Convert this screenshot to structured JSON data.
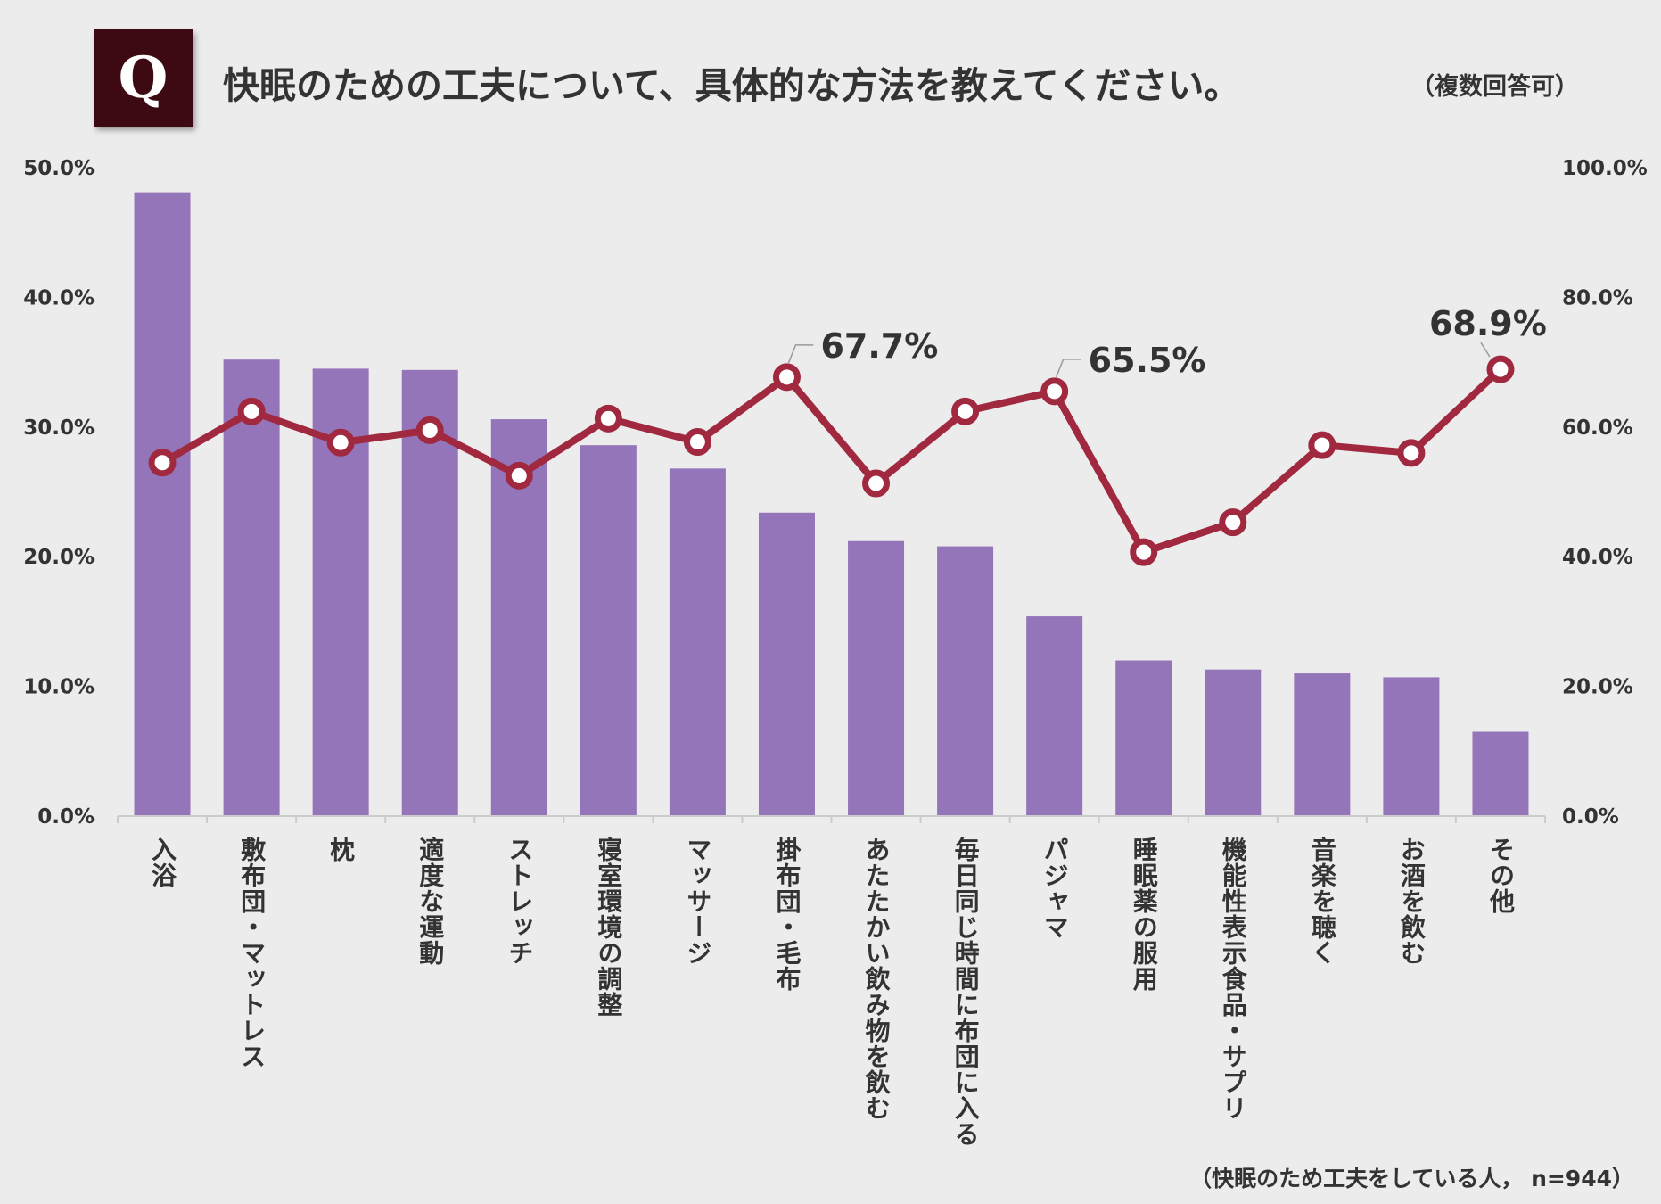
{
  "header": {
    "badge": "Q",
    "title": "快眠のための工夫について、具体的な方法を教えてください。",
    "note": "（複数回答可）"
  },
  "footnote": "（快眠のため工夫をしている人， n=944）",
  "colors": {
    "bar": "#9575b9",
    "line": "#a0283f",
    "marker_fill": "#ffffff",
    "badge": "#3d0a14",
    "axis": "#cccccc"
  },
  "chart_data": {
    "type": "bar+line",
    "categories": [
      "入浴",
      "敷布団・マットレス",
      "枕",
      "適度な運動",
      "ストレッチ",
      "寝室環境の調整",
      "マッサージ",
      "掛布団・毛布",
      "あたたかい飲み物を飲む",
      "毎日同じ時間に布団に入る",
      "パジャマ",
      "睡眠薬の服用",
      "機能性表示食品・サプリ",
      "音楽を聴く",
      "お酒を飲む",
      "その他"
    ],
    "series": [
      {
        "name": "bars",
        "type": "bar",
        "axis": "left",
        "values": [
          48.1,
          35.2,
          34.5,
          34.4,
          30.6,
          28.6,
          26.8,
          23.4,
          21.2,
          20.8,
          15.4,
          12.0,
          11.3,
          11.0,
          10.7,
          6.5
        ]
      },
      {
        "name": "line",
        "type": "line",
        "axis": "right",
        "values": [
          54.5,
          62.4,
          57.6,
          59.5,
          52.5,
          61.3,
          57.7,
          67.7,
          51.3,
          62.4,
          65.5,
          40.7,
          45.3,
          57.2,
          56.0,
          68.9
        ]
      }
    ],
    "left_axis": {
      "ylim": [
        0,
        50
      ],
      "ticks": [
        0,
        10,
        20,
        30,
        40,
        50
      ],
      "tick_labels": [
        "0.0%",
        "10.0%",
        "20.0%",
        "30.0%",
        "40.0%",
        "50.0%"
      ]
    },
    "right_axis": {
      "ylim": [
        0,
        100
      ],
      "ticks": [
        0,
        20,
        40,
        60,
        80,
        100
      ],
      "tick_labels": [
        "0.0%",
        "20.0%",
        "40.0%",
        "60.0%",
        "80.0%",
        "100.0%"
      ]
    },
    "callouts": [
      {
        "index": 7,
        "label": "67.7%"
      },
      {
        "index": 10,
        "label": "65.5%"
      },
      {
        "index": 15,
        "label": "68.9%"
      }
    ],
    "grid": false,
    "legend": "none"
  }
}
